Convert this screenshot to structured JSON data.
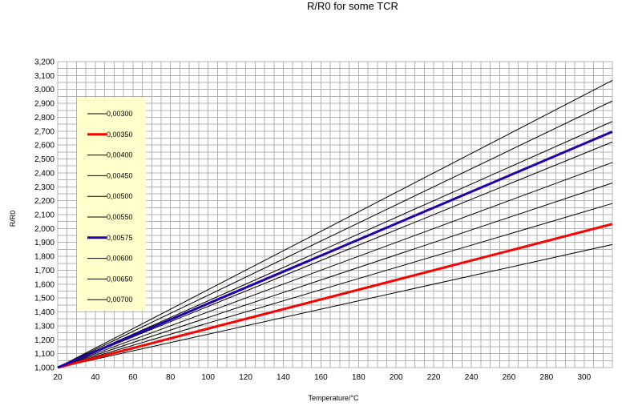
{
  "chart_data": {
    "type": "line",
    "title": "R/R0 for some TCR",
    "xlabel": "Temperature/°C",
    "ylabel": "R/R0",
    "xlim": [
      20,
      315
    ],
    "ylim": [
      1.0,
      3.2
    ],
    "x_ticks": [
      20,
      40,
      60,
      80,
      100,
      120,
      140,
      160,
      180,
      200,
      220,
      240,
      260,
      280,
      300
    ],
    "x_tick_labels": [
      "20",
      "40",
      "60",
      "80",
      "100",
      "120",
      "140",
      "160",
      "180",
      "200",
      "220",
      "240",
      "260",
      "280",
      "300"
    ],
    "y_ticks": [
      1.0,
      1.1,
      1.2,
      1.3,
      1.4,
      1.5,
      1.6,
      1.7,
      1.8,
      1.9,
      2.0,
      2.1,
      2.2,
      2.3,
      2.4,
      2.5,
      2.6,
      2.7,
      2.8,
      2.9,
      3.0,
      3.1,
      3.2
    ],
    "y_tick_labels": [
      "1,000",
      "1,100",
      "1,200",
      "1,300",
      "1,400",
      "1,500",
      "1,600",
      "1,700",
      "1,800",
      "1,900",
      "2,000",
      "2,100",
      "2,200",
      "2,300",
      "2,400",
      "2,500",
      "2,600",
      "2,700",
      "2,800",
      "2,900",
      "3,000",
      "3,100",
      "3,200"
    ],
    "grid": true,
    "legend": "left",
    "x": [
      20,
      315
    ],
    "series": [
      {
        "name": "0,00300",
        "values": [
          1.0,
          1.885
        ],
        "color": "#000000",
        "bold": false
      },
      {
        "name": "0,00350",
        "values": [
          1.0,
          2.0325
        ],
        "color": "#ff0000",
        "bold": true
      },
      {
        "name": "0,00400",
        "values": [
          1.0,
          2.18
        ],
        "color": "#000000",
        "bold": false
      },
      {
        "name": "0,00450",
        "values": [
          1.0,
          2.3275
        ],
        "color": "#000000",
        "bold": false
      },
      {
        "name": "0,00500",
        "values": [
          1.0,
          2.475
        ],
        "color": "#000000",
        "bold": false
      },
      {
        "name": "0,00550",
        "values": [
          1.0,
          2.6225
        ],
        "color": "#000000",
        "bold": false
      },
      {
        "name": "0,00575",
        "values": [
          1.0,
          2.69625
        ],
        "color": "#2200aa",
        "bold": true
      },
      {
        "name": "0,00600",
        "values": [
          1.0,
          2.77
        ],
        "color": "#000000",
        "bold": false
      },
      {
        "name": "0,00650",
        "values": [
          1.0,
          2.9175
        ],
        "color": "#000000",
        "bold": false
      },
      {
        "name": "0,00700",
        "values": [
          1.0,
          3.065
        ],
        "color": "#000000",
        "bold": false
      }
    ],
    "colors": {
      "grid": "#b3b3b3",
      "legend_bg": "#ffffcc",
      "plot_bg": "#ffffff"
    }
  }
}
